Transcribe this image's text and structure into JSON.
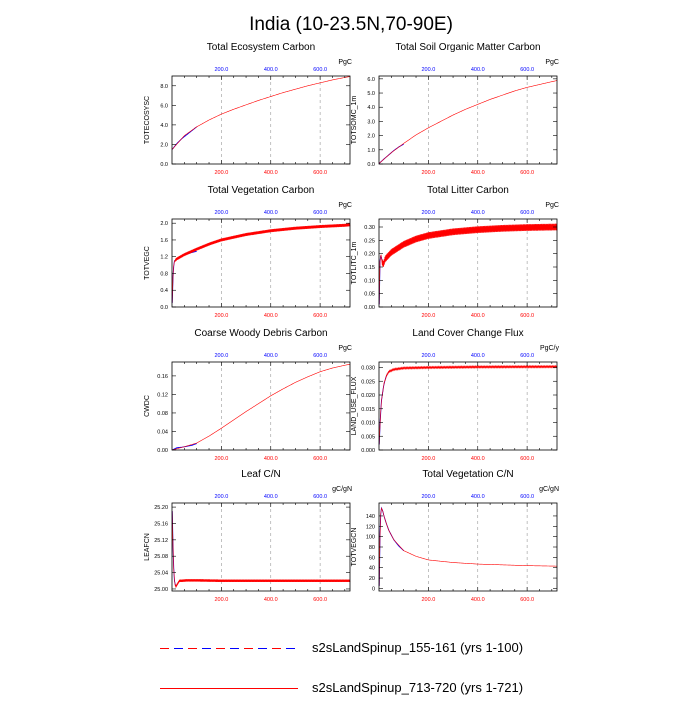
{
  "figure": {
    "title": "India (10-23.5N,70-90E)"
  },
  "legend": [
    {
      "name": "s2sLandSpinup_155-161 (yrs 1-100)",
      "color": "#0000ff",
      "dash": "dashed"
    },
    {
      "name": "s2sLandSpinup_713-720 (yrs 1-721)",
      "color": "#ff0000",
      "dash": "solid"
    }
  ],
  "colors": {
    "run1": "#0000ff",
    "run2": "#ff0000",
    "grid": "#999999"
  },
  "chart_data": [
    {
      "type": "line",
      "title": "Total Ecosystem Carbon",
      "ylabel": "TOTECOSYSC",
      "units": "PgC",
      "xlim": [
        0,
        721
      ],
      "ylim": [
        0,
        9
      ],
      "xticks": [
        200,
        400,
        600
      ],
      "xtick_labels": [
        "200.0",
        "400.0",
        "600.0"
      ],
      "yticks": [
        0,
        2,
        4,
        6,
        8
      ],
      "ytick_labels": [
        "0.0",
        "2.0",
        "4.0",
        "6.0",
        "8.0"
      ],
      "series": [
        {
          "name": "s2sLandSpinup_155-161 (yrs 1-100)",
          "x": [
            1,
            20,
            40,
            60,
            80,
            100
          ],
          "y": [
            1.5,
            2.1,
            2.6,
            3.0,
            3.4,
            3.8
          ]
        },
        {
          "name": "s2sLandSpinup_713-720 (yrs 1-721)",
          "x": [
            1,
            50,
            100,
            150,
            200,
            250,
            300,
            350,
            400,
            450,
            500,
            550,
            600,
            650,
            700,
            721
          ],
          "y": [
            1.5,
            2.9,
            3.8,
            4.5,
            5.1,
            5.6,
            6.05,
            6.5,
            6.9,
            7.3,
            7.65,
            8.0,
            8.3,
            8.6,
            8.85,
            8.95
          ]
        }
      ]
    },
    {
      "type": "line",
      "title": "Total Soil Organic Matter Carbon",
      "ylabel": "TOTSOMC_1m",
      "units": "PgC",
      "xlim": [
        0,
        721
      ],
      "ylim": [
        0,
        6.2
      ],
      "xticks": [
        200,
        400,
        600
      ],
      "xtick_labels": [
        "200.0",
        "400.0",
        "600.0"
      ],
      "yticks": [
        0,
        1,
        2,
        3,
        4,
        5,
        6
      ],
      "ytick_labels": [
        "0.0",
        "1.0",
        "2.0",
        "3.0",
        "4.0",
        "5.0",
        "6.0"
      ],
      "series": [
        {
          "name": "s2sLandSpinup_155-161 (yrs 1-100)",
          "x": [
            1,
            20,
            40,
            60,
            80,
            100
          ],
          "y": [
            0.05,
            0.35,
            0.65,
            0.95,
            1.2,
            1.4
          ]
        },
        {
          "name": "s2sLandSpinup_713-720 (yrs 1-721)",
          "x": [
            1,
            50,
            100,
            150,
            200,
            250,
            300,
            350,
            400,
            450,
            500,
            550,
            600,
            650,
            700,
            721
          ],
          "y": [
            0.05,
            0.8,
            1.45,
            2.05,
            2.55,
            3.0,
            3.45,
            3.85,
            4.2,
            4.55,
            4.85,
            5.15,
            5.4,
            5.6,
            5.8,
            5.88
          ]
        }
      ]
    },
    {
      "type": "line",
      "title": "Total Vegetation Carbon",
      "ylabel": "TOTVEGC",
      "units": "PgC",
      "xlim": [
        0,
        721
      ],
      "ylim": [
        0,
        2.1
      ],
      "xticks": [
        200,
        400,
        600
      ],
      "xtick_labels": [
        "200.0",
        "400.0",
        "600.0"
      ],
      "yticks": [
        0,
        0.4,
        0.8,
        1.2,
        1.6,
        2.0
      ],
      "ytick_labels": [
        "0.0",
        "0.4",
        "0.8",
        "1.2",
        "1.6",
        "2.0"
      ],
      "series": [
        {
          "name": "s2sLandSpinup_155-161 (yrs 1-100)",
          "x": [
            1,
            5,
            10,
            20,
            40,
            60,
            80,
            100
          ],
          "y": [
            0.1,
            0.9,
            1.1,
            1.15,
            1.22,
            1.26,
            1.3,
            1.33
          ]
        },
        {
          "name": "s2sLandSpinup_713-720 (yrs 1-721)",
          "x": [
            1,
            5,
            10,
            20,
            50,
            100,
            150,
            200,
            300,
            400,
            500,
            600,
            700,
            721
          ],
          "y": [
            0.1,
            0.9,
            1.1,
            1.15,
            1.25,
            1.38,
            1.5,
            1.6,
            1.73,
            1.82,
            1.88,
            1.92,
            1.95,
            1.96
          ],
          "oscillation": 0.07
        }
      ]
    },
    {
      "type": "line",
      "title": "Total Litter Carbon",
      "ylabel": "TOTLITC_1m",
      "units": "PgC",
      "xlim": [
        0,
        721
      ],
      "ylim": [
        0,
        0.33
      ],
      "xticks": [
        200,
        400,
        600
      ],
      "xtick_labels": [
        "200.0",
        "400.0",
        "600.0"
      ],
      "yticks": [
        0,
        0.05,
        0.1,
        0.15,
        0.2,
        0.25,
        0.3
      ],
      "ytick_labels": [
        "0.00",
        "0.05",
        "0.10",
        "0.15",
        "0.20",
        "0.25",
        "0.30"
      ],
      "series": [
        {
          "name": "s2sLandSpinup_155-161 (yrs 1-100)",
          "x": [
            1,
            4,
            8,
            12,
            18,
            25,
            40,
            60,
            80,
            100
          ],
          "y": [
            0.01,
            0.17,
            0.2,
            0.17,
            0.16,
            0.18,
            0.2,
            0.21,
            0.22,
            0.23
          ]
        },
        {
          "name": "s2sLandSpinup_713-720 (yrs 1-721)",
          "x": [
            1,
            4,
            8,
            12,
            18,
            25,
            50,
            100,
            150,
            200,
            300,
            400,
            500,
            600,
            721
          ],
          "y": [
            0.01,
            0.17,
            0.2,
            0.17,
            0.16,
            0.18,
            0.205,
            0.235,
            0.255,
            0.268,
            0.282,
            0.29,
            0.295,
            0.298,
            0.3
          ],
          "oscillation": 0.025
        }
      ]
    },
    {
      "type": "line",
      "title": "Coarse Woody Debris Carbon",
      "ylabel": "CWDC",
      "units": "PgC",
      "xlim": [
        0,
        721
      ],
      "ylim": [
        0,
        0.19
      ],
      "xticks": [
        200,
        400,
        600
      ],
      "xtick_labels": [
        "200.0",
        "400.0",
        "600.0"
      ],
      "yticks": [
        0,
        0.04,
        0.08,
        0.12,
        0.16
      ],
      "ytick_labels": [
        "0.00",
        "0.04",
        "0.08",
        "0.12",
        "0.16"
      ],
      "series": [
        {
          "name": "s2sLandSpinup_155-161 (yrs 1-100)",
          "x": [
            1,
            20,
            40,
            60,
            80,
            100
          ],
          "y": [
            0.0,
            0.005,
            0.006,
            0.008,
            0.01,
            0.014
          ]
        },
        {
          "name": "s2sLandSpinup_713-720 (yrs 1-721)",
          "x": [
            1,
            50,
            100,
            150,
            200,
            250,
            300,
            350,
            400,
            450,
            500,
            550,
            600,
            650,
            700,
            721
          ],
          "y": [
            0.0,
            0.007,
            0.015,
            0.03,
            0.047,
            0.065,
            0.083,
            0.1,
            0.117,
            0.132,
            0.146,
            0.158,
            0.169,
            0.177,
            0.183,
            0.185
          ]
        }
      ]
    },
    {
      "type": "line",
      "title": "Land Cover Change Flux",
      "ylabel": "LAND_USE_FLUX",
      "units": "PgC/y",
      "xlim": [
        0,
        721
      ],
      "ylim": [
        0,
        0.032
      ],
      "xticks": [
        200,
        400,
        600
      ],
      "xtick_labels": [
        "200.0",
        "400.0",
        "600.0"
      ],
      "yticks": [
        0,
        0.005,
        0.01,
        0.015,
        0.02,
        0.025,
        0.03
      ],
      "ytick_labels": [
        "0.000",
        "0.005",
        "0.010",
        "0.015",
        "0.020",
        "0.025",
        "0.030"
      ],
      "series": [
        {
          "name": "s2sLandSpinup_155-161 (yrs 1-100)",
          "x": [
            1,
            5,
            10,
            20,
            30,
            40,
            60,
            80,
            100
          ],
          "y": [
            0.002,
            0.011,
            0.018,
            0.024,
            0.027,
            0.0285,
            0.0293,
            0.0296,
            0.0298
          ]
        },
        {
          "name": "s2sLandSpinup_713-720 (yrs 1-721)",
          "x": [
            1,
            5,
            10,
            20,
            30,
            40,
            60,
            100,
            200,
            400,
            721
          ],
          "y": [
            0.002,
            0.011,
            0.018,
            0.024,
            0.027,
            0.0285,
            0.0293,
            0.0298,
            0.03,
            0.0302,
            0.0303
          ],
          "oscillation": 0.0005
        }
      ]
    },
    {
      "type": "line",
      "title": "Leaf C/N",
      "ylabel": "LEAFCN",
      "units": "gC/gN",
      "xlim": [
        0,
        721
      ],
      "ylim": [
        24.995,
        25.21
      ],
      "xticks": [
        200,
        400,
        600
      ],
      "xtick_labels": [
        "200.0",
        "400.0",
        "600.0"
      ],
      "yticks": [
        25.0,
        25.04,
        25.08,
        25.12,
        25.16,
        25.2
      ],
      "ytick_labels": [
        "25.00",
        "25.04",
        "25.08",
        "25.12",
        "25.16",
        "25.20"
      ],
      "series": [
        {
          "name": "s2sLandSpinup_155-161 (yrs 1-100)",
          "x": [
            1,
            3,
            6,
            10,
            15,
            20,
            30,
            40,
            60,
            80,
            100
          ],
          "y": [
            25.19,
            25.13,
            25.06,
            25.02,
            25.005,
            25.01,
            25.02,
            25.02,
            25.022,
            25.022,
            25.022
          ]
        },
        {
          "name": "s2sLandSpinup_713-720 (yrs 1-721)",
          "x": [
            1,
            3,
            6,
            10,
            15,
            20,
            30,
            40,
            60,
            100,
            200,
            400,
            721
          ],
          "y": [
            25.19,
            25.13,
            25.06,
            25.02,
            25.005,
            25.01,
            25.02,
            25.02,
            25.021,
            25.021,
            25.02,
            25.02,
            25.02
          ],
          "oscillation": 0.006
        }
      ]
    },
    {
      "type": "line",
      "title": "Total Vegetation C/N",
      "ylabel": "TOTVEGCN",
      "units": "gC/gN",
      "xlim": [
        0,
        721
      ],
      "ylim": [
        -5,
        165
      ],
      "xticks": [
        200,
        400,
        600
      ],
      "xtick_labels": [
        "200.0",
        "400.0",
        "600.0"
      ],
      "yticks": [
        0,
        20,
        40,
        60,
        80,
        100,
        120,
        140
      ],
      "ytick_labels": [
        "0",
        "20",
        "40",
        "60",
        "80",
        "100",
        "120",
        "140"
      ],
      "series": [
        {
          "name": "s2sLandSpinup_155-161 (yrs 1-100)",
          "x": [
            1,
            3,
            6,
            10,
            15,
            20,
            30,
            40,
            60,
            80,
            100
          ],
          "y": [
            5,
            80,
            140,
            155,
            150,
            140,
            125,
            112,
            94,
            82,
            73
          ]
        },
        {
          "name": "s2sLandSpinup_713-720 (yrs 1-721)",
          "x": [
            1,
            3,
            6,
            10,
            15,
            20,
            30,
            40,
            60,
            100,
            150,
            200,
            300,
            400,
            500,
            600,
            721
          ],
          "y": [
            5,
            80,
            140,
            155,
            150,
            140,
            125,
            112,
            94,
            73,
            62,
            55,
            50,
            47,
            45.5,
            44,
            43
          ]
        }
      ]
    }
  ]
}
